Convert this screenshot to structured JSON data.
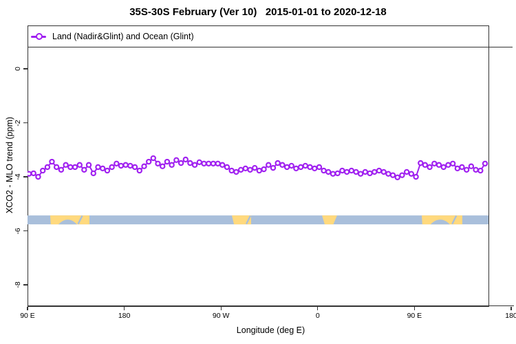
{
  "colors": {
    "series": "#A020F0",
    "ocean": "#A9BFDB",
    "land": "#FFD97E",
    "axis": "#333333",
    "background": "#ffffff"
  },
  "chart_data": {
    "type": "line",
    "title": "35S-30S February (Ver 10)   2015-01-01 to 2020-12-18",
    "xlabel": "Longitude (deg E)",
    "ylabel": "XCO2 - MLO trend (ppm)",
    "xlim": [
      90,
      541.6
    ],
    "ylim": [
      -8.79,
      1.6
    ],
    "grid": false,
    "legend_position": "top-full-width-box",
    "xticks": [
      {
        "value": 90,
        "label": "90 E"
      },
      {
        "value": 180,
        "label": "180"
      },
      {
        "value": 270,
        "label": "90 W"
      },
      {
        "value": 360,
        "label": "0"
      },
      {
        "value": 450,
        "label": "90 E"
      },
      {
        "value": 540,
        "label": "180"
      }
    ],
    "yticks": [
      {
        "value": 0,
        "label": "0"
      },
      {
        "value": -2,
        "label": "-2"
      },
      {
        "value": -4,
        "label": "-4"
      },
      {
        "value": -6,
        "label": "-6"
      },
      {
        "value": -8,
        "label": "-8"
      }
    ],
    "series": [
      {
        "name": "Land (Nadir&Glint) and Ocean (Glint)",
        "marker": "open-circle",
        "color": "#A020F0",
        "x": [
          91.3,
          95.6,
          99.9,
          104.2,
          108.5,
          112.7,
          117.0,
          121.3,
          125.6,
          129.9,
          134.2,
          138.5,
          142.7,
          147.0,
          151.3,
          155.6,
          159.9,
          164.2,
          168.5,
          172.8,
          177.0,
          181.3,
          185.6,
          189.9,
          194.2,
          198.5,
          202.8,
          207.0,
          211.3,
          215.6,
          219.9,
          224.2,
          228.5,
          232.8,
          237.1,
          241.3,
          245.6,
          249.9,
          254.2,
          258.5,
          262.8,
          267.1,
          271.3,
          275.6,
          279.9,
          284.2,
          288.5,
          292.8,
          297.1,
          301.4,
          305.6,
          309.9,
          314.2,
          318.5,
          322.8,
          327.1,
          331.4,
          335.6,
          339.9,
          344.2,
          348.5,
          352.8,
          357.1,
          361.4,
          365.6,
          369.9,
          374.2,
          378.5,
          382.8,
          387.1,
          391.4,
          395.7,
          399.9,
          404.2,
          408.5,
          412.8,
          417.1,
          421.4,
          425.7,
          429.9,
          434.2,
          438.5,
          442.8,
          447.1,
          451.4,
          455.7,
          459.9,
          464.2,
          468.5,
          472.8,
          477.1,
          481.4,
          485.7,
          490.0,
          494.2,
          498.5,
          502.8,
          507.1,
          511.4,
          515.7
        ],
        "values": [
          -3.89,
          -3.87,
          -4.0,
          -3.77,
          -3.64,
          -3.44,
          -3.64,
          -3.74,
          -3.56,
          -3.64,
          -3.64,
          -3.56,
          -3.74,
          -3.56,
          -3.87,
          -3.64,
          -3.69,
          -3.77,
          -3.64,
          -3.51,
          -3.59,
          -3.56,
          -3.59,
          -3.64,
          -3.77,
          -3.61,
          -3.44,
          -3.31,
          -3.51,
          -3.61,
          -3.44,
          -3.56,
          -3.38,
          -3.49,
          -3.36,
          -3.49,
          -3.56,
          -3.46,
          -3.51,
          -3.51,
          -3.51,
          -3.51,
          -3.56,
          -3.64,
          -3.77,
          -3.82,
          -3.74,
          -3.69,
          -3.74,
          -3.67,
          -3.77,
          -3.72,
          -3.56,
          -3.67,
          -3.49,
          -3.56,
          -3.64,
          -3.59,
          -3.69,
          -3.64,
          -3.59,
          -3.64,
          -3.69,
          -3.64,
          -3.77,
          -3.82,
          -3.89,
          -3.87,
          -3.77,
          -3.82,
          -3.77,
          -3.82,
          -3.89,
          -3.82,
          -3.87,
          -3.82,
          -3.77,
          -3.82,
          -3.89,
          -3.94,
          -4.02,
          -3.94,
          -3.82,
          -3.89,
          -4.0,
          -3.49,
          -3.56,
          -3.64,
          -3.51,
          -3.56,
          -3.64,
          -3.56,
          -3.51,
          -3.69,
          -3.64,
          -3.74,
          -3.61,
          -3.74,
          -3.77,
          -3.51
        ]
      }
    ],
    "land_ocean_band": {
      "value_top": -5.43,
      "value_bottom": -5.76,
      "ocean_color": "#A9BFDB",
      "land_color": "#FFD97E",
      "land_patches": [
        {
          "from": 111.1,
          "to": 147.6,
          "inset_bl": 0.5,
          "inset_br": 0
        },
        {
          "from": 280.1,
          "to": 298.0,
          "inset_bl": 2.0,
          "inset_br": 0
        },
        {
          "from": 364.0,
          "to": 378.0,
          "inset_bl": 2.5,
          "inset_br": 3.5
        },
        {
          "from": 456.8,
          "to": 494.5,
          "inset_bl": 0.5,
          "inset_br": 0
        }
      ],
      "coast_notches": [
        {
          "center": 127.4,
          "radius": 8.6
        },
        {
          "center": 474.0,
          "radius": 9.0
        }
      ],
      "coast_slashes": [
        {
          "lon": 139.0
        },
        {
          "lon": 295.5
        },
        {
          "lon": 487.0
        }
      ]
    }
  }
}
